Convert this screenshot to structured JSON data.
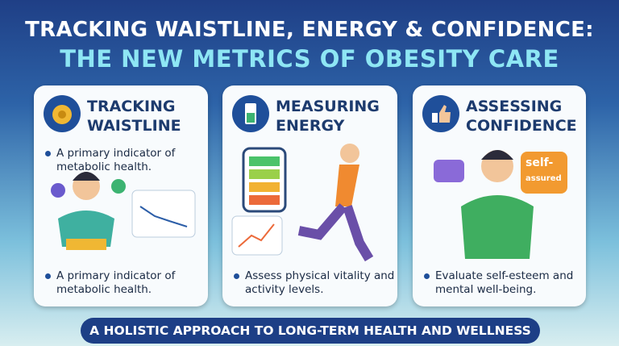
{
  "title": {
    "line1": "TRACKING WAISTLINE, ENERGY & CONFIDENCE:",
    "line2": "THE NEW METRICS OF OBESITY CARE"
  },
  "cards": [
    {
      "heading": [
        "TRACKING",
        "WAISTLINE"
      ],
      "bullets": [
        "A primary indicator of metabolic health.",
        "A primary indicator of metabolic health."
      ]
    },
    {
      "heading": [
        "MEASURING",
        "ENERGY"
      ],
      "bullets": [
        "Assess physical vitality and activity levels."
      ]
    },
    {
      "heading": [
        "ASSESSING",
        "CONFIDENCE"
      ],
      "bullets": [
        "Evaluate self-esteem and mental well-being."
      ],
      "bubble": [
        "self-",
        "assured"
      ]
    }
  ],
  "footer": "A HOLISTIC APPROACH TO LONG-TERM HEALTH AND WELLNESS"
}
